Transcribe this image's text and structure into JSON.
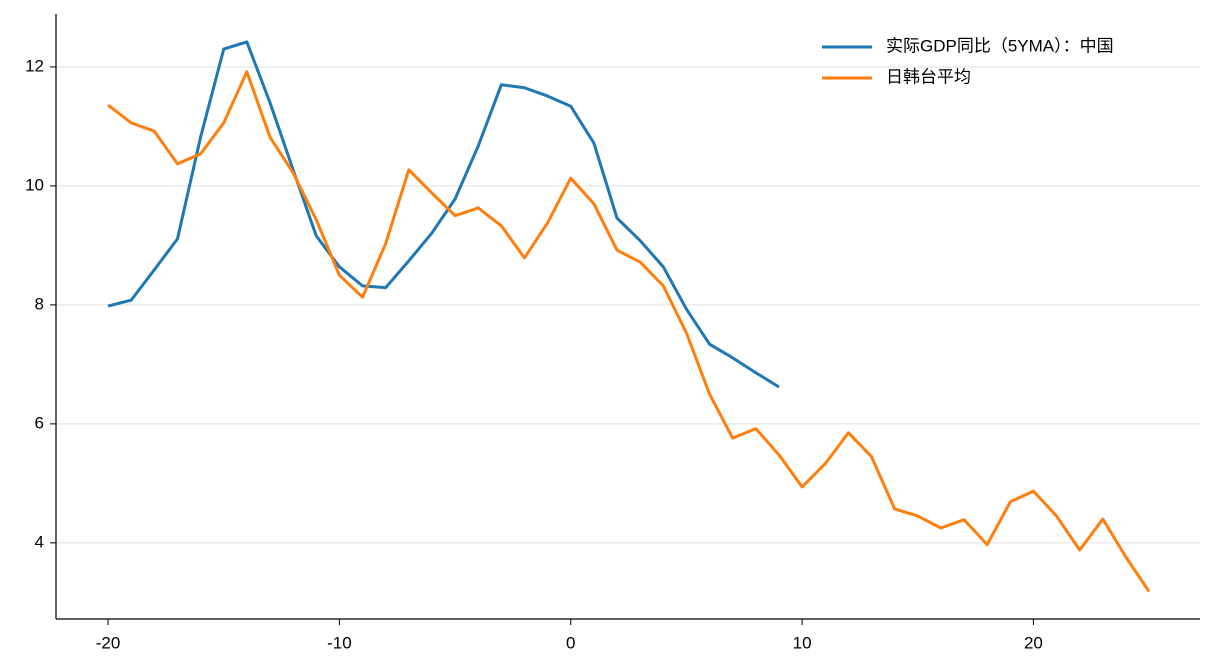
{
  "chart_data": {
    "type": "line",
    "x": [
      -20,
      -19,
      -18,
      -17,
      -16,
      -15,
      -14,
      -13,
      -12,
      -11,
      -10,
      -9,
      -8,
      -7,
      -6,
      -5,
      -4,
      -3,
      -2,
      -1,
      0,
      1,
      2,
      3,
      4,
      5,
      6,
      7,
      8,
      9,
      10,
      11,
      12,
      13,
      14,
      15,
      16,
      17,
      18,
      19,
      20,
      21,
      22,
      23,
      24,
      25
    ],
    "series": [
      {
        "name": "实际GDP同比（5YMA）：中国",
        "color": "#1f77b4",
        "values": [
          7.98,
          8.08,
          8.59,
          9.11,
          10.82,
          12.3,
          12.42,
          11.4,
          10.27,
          9.16,
          8.64,
          8.32,
          8.29,
          8.74,
          9.21,
          9.78,
          10.67,
          11.7,
          11.65,
          11.51,
          11.34,
          10.72,
          9.46,
          9.08,
          8.64,
          7.93,
          7.34,
          7.11,
          6.86,
          6.62,
          null,
          null,
          null,
          null,
          null,
          null,
          null,
          null,
          null,
          null,
          null,
          null,
          null,
          null,
          null,
          null
        ]
      },
      {
        "name": "日韩台平均",
        "color": "#ff7f0e",
        "values": [
          11.36,
          11.06,
          10.92,
          10.37,
          10.54,
          11.06,
          11.92,
          10.82,
          10.22,
          9.43,
          8.5,
          8.13,
          9.03,
          10.27,
          9.88,
          9.5,
          9.63,
          9.33,
          8.79,
          9.38,
          10.13,
          9.7,
          8.92,
          8.72,
          8.32,
          7.53,
          6.5,
          5.76,
          5.92,
          5.48,
          4.94,
          5.33,
          5.85,
          5.45,
          4.57,
          4.45,
          4.25,
          4.39,
          3.97,
          4.69,
          4.87,
          4.45,
          3.88,
          4.4,
          3.76,
          3.18
        ]
      }
    ],
    "xlim": [
      -22.25,
      27.2
    ],
    "xticks": [
      -20,
      -10,
      0,
      10,
      20
    ],
    "ylim": [
      2.72,
      12.89
    ],
    "yticks": [
      4,
      6,
      8,
      10,
      12
    ],
    "grid": true,
    "legend": "upper right"
  }
}
